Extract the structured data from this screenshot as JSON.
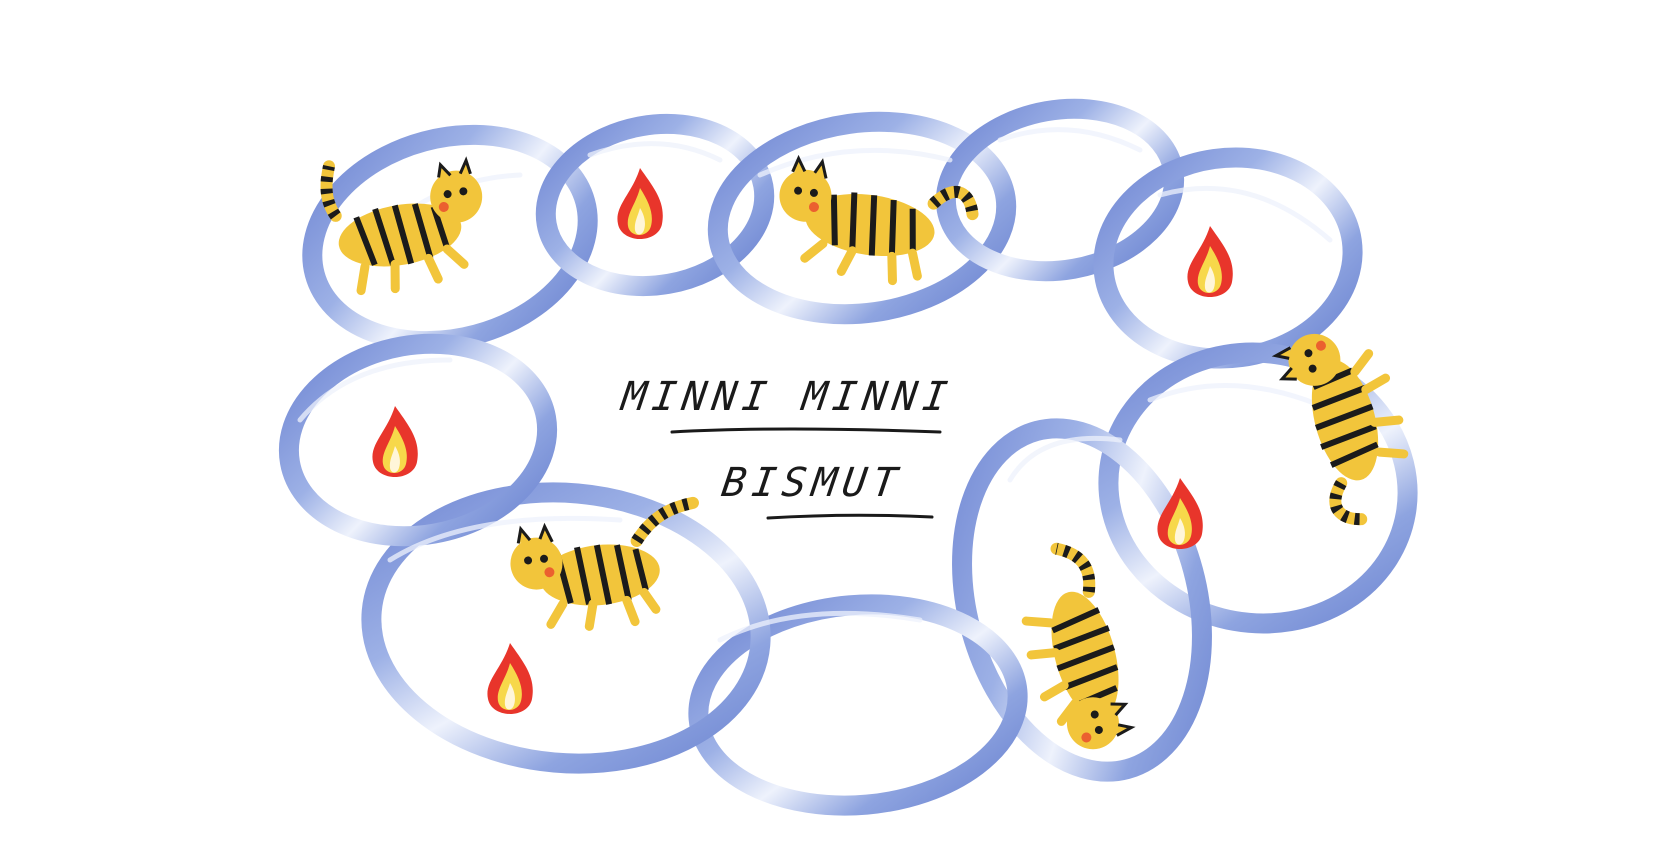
{
  "artwork": {
    "title_line1": "MINNI MINNI",
    "title_line2": "BISMUT",
    "motifs": {
      "ring_color": "#8fa6e0",
      "ring_highlight": "#e9eefb",
      "ring_shadow": "#5f78c9",
      "tiger_body": "#f2c53b",
      "tiger_stripe": "#1b1b1b",
      "flame_outer": "#e8352b",
      "flame_inner": "#f7d84a",
      "flame_core": "#fff6d9",
      "ink": "#1a1a1a"
    }
  }
}
